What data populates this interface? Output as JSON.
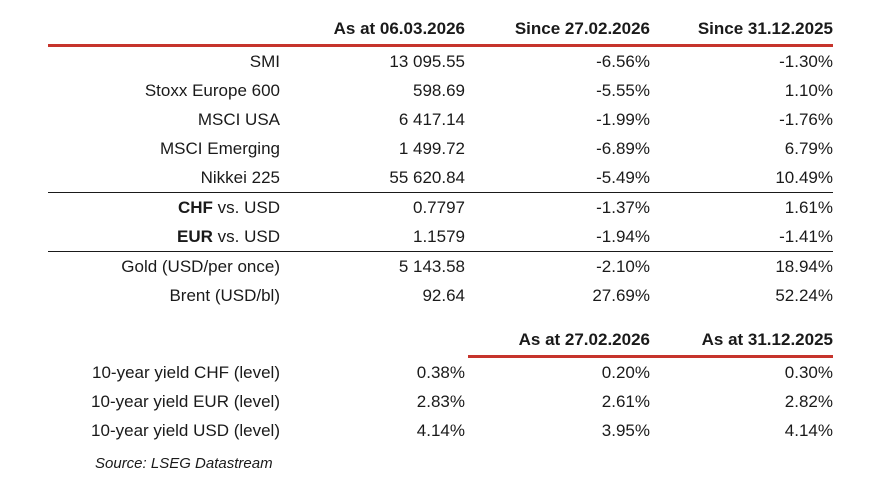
{
  "colors": {
    "accent_red": "#c6342c",
    "text": "#1a1a1a"
  },
  "table": {
    "header1": {
      "col2": "As at 06.03.2026",
      "col3": "Since 27.02.2026",
      "col4": "Since 31.12.2025"
    },
    "indices": [
      {
        "label": "SMI",
        "level": "13 095.55",
        "since_week": "-6.56%",
        "since_ytd": "-1.30%"
      },
      {
        "label": "Stoxx Europe 600",
        "level": "598.69",
        "since_week": "-5.55%",
        "since_ytd": "1.10%"
      },
      {
        "label": "MSCI USA",
        "level": "6 417.14",
        "since_week": "-1.99%",
        "since_ytd": "-1.76%"
      },
      {
        "label": "MSCI Emerging",
        "level": "1 499.72",
        "since_week": "-6.89%",
        "since_ytd": "6.79%"
      },
      {
        "label": "Nikkei 225",
        "level": "55 620.84",
        "since_week": "-5.49%",
        "since_ytd": "10.49%"
      }
    ],
    "fx": [
      {
        "label_bold": "CHF",
        "label_rest": " vs. USD",
        "level": "0.7797",
        "since_week": "-1.37%",
        "since_ytd": "1.61%"
      },
      {
        "label_bold": "EUR",
        "label_rest": " vs. USD",
        "level": "1.1579",
        "since_week": "-1.94%",
        "since_ytd": "-1.41%"
      }
    ],
    "commodities": [
      {
        "label": "Gold (USD/per once)",
        "level": "5 143.58",
        "since_week": "-2.10%",
        "since_ytd": "18.94%"
      },
      {
        "label": "Brent (USD/bl)",
        "level": "92.64",
        "since_week": "27.69%",
        "since_ytd": "52.24%"
      }
    ],
    "header2": {
      "col3": "As at 27.02.2026",
      "col4": "As at 31.12.2025"
    },
    "yields": [
      {
        "label": "10-year yield CHF (level)",
        "current": "0.38%",
        "prev_week": "0.20%",
        "prev_ytd": "0.30%"
      },
      {
        "label": "10-year yield EUR (level)",
        "current": "2.83%",
        "prev_week": "2.61%",
        "prev_ytd": "2.82%"
      },
      {
        "label": "10-year yield USD (level)",
        "current": "4.14%",
        "prev_week": "3.95%",
        "prev_ytd": "4.14%"
      }
    ],
    "source": "Source: LSEG Datastream"
  }
}
